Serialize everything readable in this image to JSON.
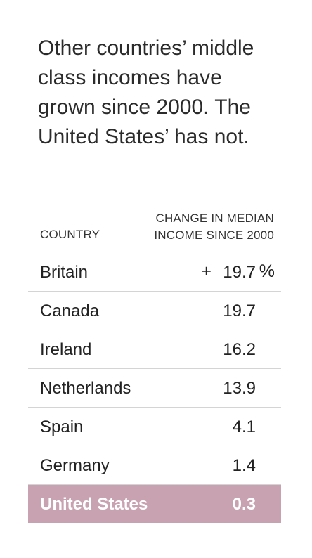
{
  "headline": "Other countries’ middle class incomes have grown since 2000. The United States’ has not.",
  "chart_data": {
    "type": "table",
    "columns": [
      "COUNTRY",
      "CHANGE IN MEDIAN INCOME SINCE 2000"
    ],
    "column_header_lines": [
      "CHANGE IN MEDIAN",
      "INCOME SINCE 2000"
    ],
    "value_prefix": "+",
    "value_suffix": "%",
    "highlight_color": "#c9a2b1",
    "rows": [
      {
        "country": "Britain",
        "value": "19.7"
      },
      {
        "country": "Canada",
        "value": "19.7"
      },
      {
        "country": "Ireland",
        "value": "16.2"
      },
      {
        "country": "Netherlands",
        "value": "13.9"
      },
      {
        "country": "Spain",
        "value": "4.1"
      },
      {
        "country": "Germany",
        "value": "1.4"
      },
      {
        "country": "United States",
        "value": "0.3",
        "highlighted": true
      }
    ]
  }
}
